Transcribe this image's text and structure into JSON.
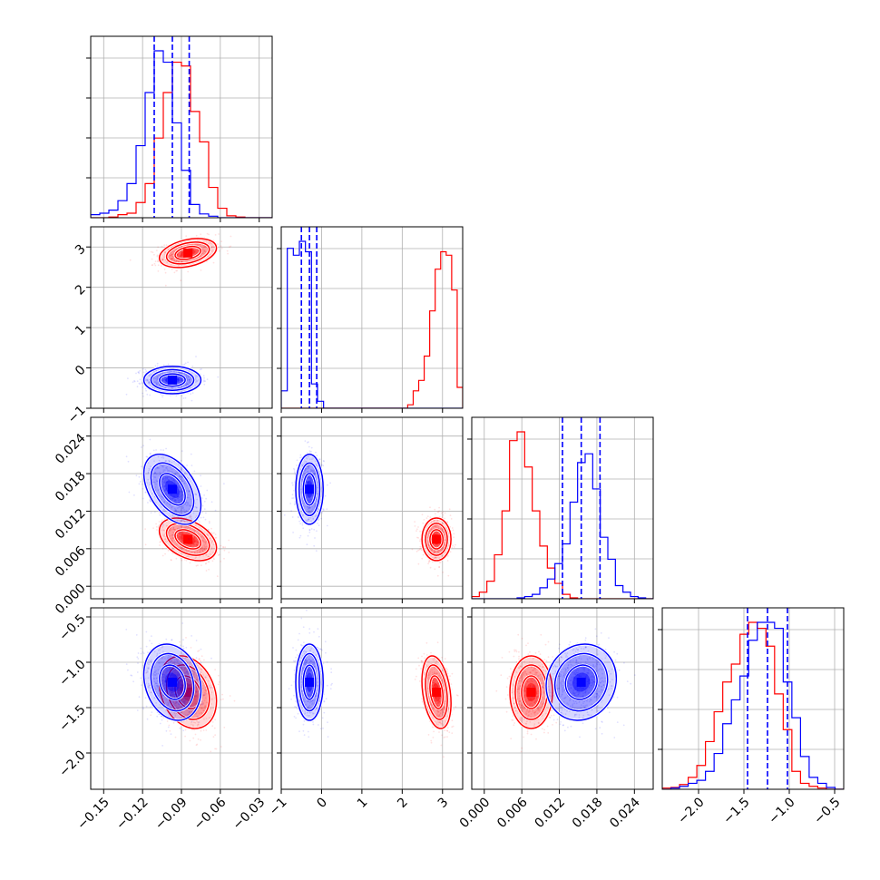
{
  "chart_data": {
    "type": "corner",
    "grid": true,
    "legend": "none",
    "colors": {
      "blue": "#0000ff",
      "red": "#ff0000",
      "grid": "#b0b0b0"
    },
    "parameters": [
      {
        "range": [
          -0.16,
          -0.02
        ],
        "ticks": [
          "−0.15",
          "−0.12",
          "−0.09",
          "−0.06",
          "−0.03"
        ],
        "tick_values": [
          -0.15,
          -0.12,
          -0.09,
          -0.06,
          -0.03
        ]
      },
      {
        "range": [
          -1.0,
          3.5
        ],
        "ticks": [
          "−1",
          "0",
          "1",
          "2",
          "3"
        ],
        "tick_values": [
          -1,
          0,
          1,
          2,
          3
        ]
      },
      {
        "range": [
          -0.002,
          0.027
        ],
        "ticks": [
          "0.000",
          "0.006",
          "0.012",
          "0.018",
          "0.024"
        ],
        "tick_values": [
          0.0,
          0.006,
          0.012,
          0.018,
          0.024
        ]
      },
      {
        "range": [
          -2.4,
          -0.4
        ],
        "ticks": [
          "−2.0",
          "−1.5",
          "−1.0",
          "−0.5"
        ],
        "tick_values": [
          -2.0,
          -1.5,
          -1.0,
          -0.5
        ]
      }
    ],
    "series": [
      {
        "color": "blue",
        "mean": [
          -0.097,
          -0.3,
          0.0155,
          -1.22
        ],
        "sigma": [
          0.011,
          0.17,
          0.0028,
          0.21
        ],
        "quantiles": [
          [
            -0.111,
            -0.097,
            -0.084
          ],
          [
            -0.5,
            -0.3,
            -0.12
          ],
          [
            0.0125,
            0.0155,
            0.0185
          ],
          [
            -1.46,
            -1.24,
            -1.02
          ]
        ],
        "correlations": {
          "0-2": -0.45,
          "0-3": -0.2,
          "2-3": 0.1
        }
      },
      {
        "color": "red",
        "mean": [
          -0.085,
          2.85,
          0.0075,
          -1.33
        ],
        "sigma": [
          0.011,
          0.18,
          0.0017,
          0.2
        ],
        "correlations": {
          "0-1": 0.35,
          "0-2": -0.4,
          "1-3": -0.3,
          "0-3": -0.25
        }
      }
    ],
    "histograms": [
      {
        "blue": [
          0.8,
          1.2,
          2.0,
          4.5,
          9.0,
          19.0,
          33.0,
          44.0,
          41.0,
          25.0,
          12.5,
          3.5,
          1.0,
          0.4,
          0,
          0,
          0,
          0,
          0,
          0
        ],
        "red": [
          0,
          0,
          0.2,
          0.8,
          1.2,
          4.0,
          9.0,
          21.0,
          33.0,
          41.0,
          40.0,
          28.0,
          20.0,
          8.0,
          2.5,
          0.5,
          0.2,
          0,
          0,
          0
        ]
      },
      {
        "blue": [
          0.5,
          4.6,
          4.4,
          4.8,
          4.5,
          0.7,
          0.2,
          0,
          0,
          0,
          0,
          0,
          0,
          0,
          0,
          0,
          0,
          0,
          0,
          0,
          0,
          0,
          0,
          0,
          0,
          0,
          0,
          0,
          0,
          0
        ],
        "red": [
          0,
          0,
          0,
          0,
          0,
          0,
          0,
          0,
          0,
          0,
          0,
          0,
          0,
          0,
          0,
          0,
          0,
          0,
          0,
          0,
          0,
          0,
          0,
          0.1,
          0.5,
          0.8,
          1.5,
          2.8,
          4.0,
          4.5,
          4.4,
          3.4,
          0.6
        ]
      },
      {
        "blue": [
          0,
          0,
          0,
          0,
          0,
          0,
          0.2,
          0.5,
          1.0,
          2.5,
          4.5,
          8.0,
          12.5,
          22.0,
          31.0,
          33.0,
          25.0,
          14.0,
          9.0,
          3.0,
          1.5,
          0.5,
          0.2,
          0
        ],
        "red": [
          0.5,
          1.5,
          4.0,
          10.0,
          20.0,
          36.0,
          38.0,
          30.0,
          20.0,
          12.0,
          7.0,
          3.5,
          1.0,
          0.2,
          0,
          0,
          0,
          0,
          0,
          0,
          0,
          0,
          0,
          0
        ]
      },
      {
        "blue": [
          0,
          0.2,
          0.5,
          1.0,
          1.5,
          3.0,
          6.0,
          11.0,
          15.0,
          19.0,
          25.0,
          28.0,
          28.0,
          27.0,
          18.0,
          12.0,
          5.5,
          2.0,
          1.0,
          0.3,
          0
        ],
        "red": [
          0.2,
          0.3,
          0.8,
          2.0,
          4.0,
          8.0,
          13.0,
          18.0,
          21.0,
          26.0,
          28.0,
          27.0,
          24.0,
          16.0,
          10.0,
          3.0,
          1.0,
          0.5,
          0.2,
          0,
          0
        ]
      }
    ]
  }
}
